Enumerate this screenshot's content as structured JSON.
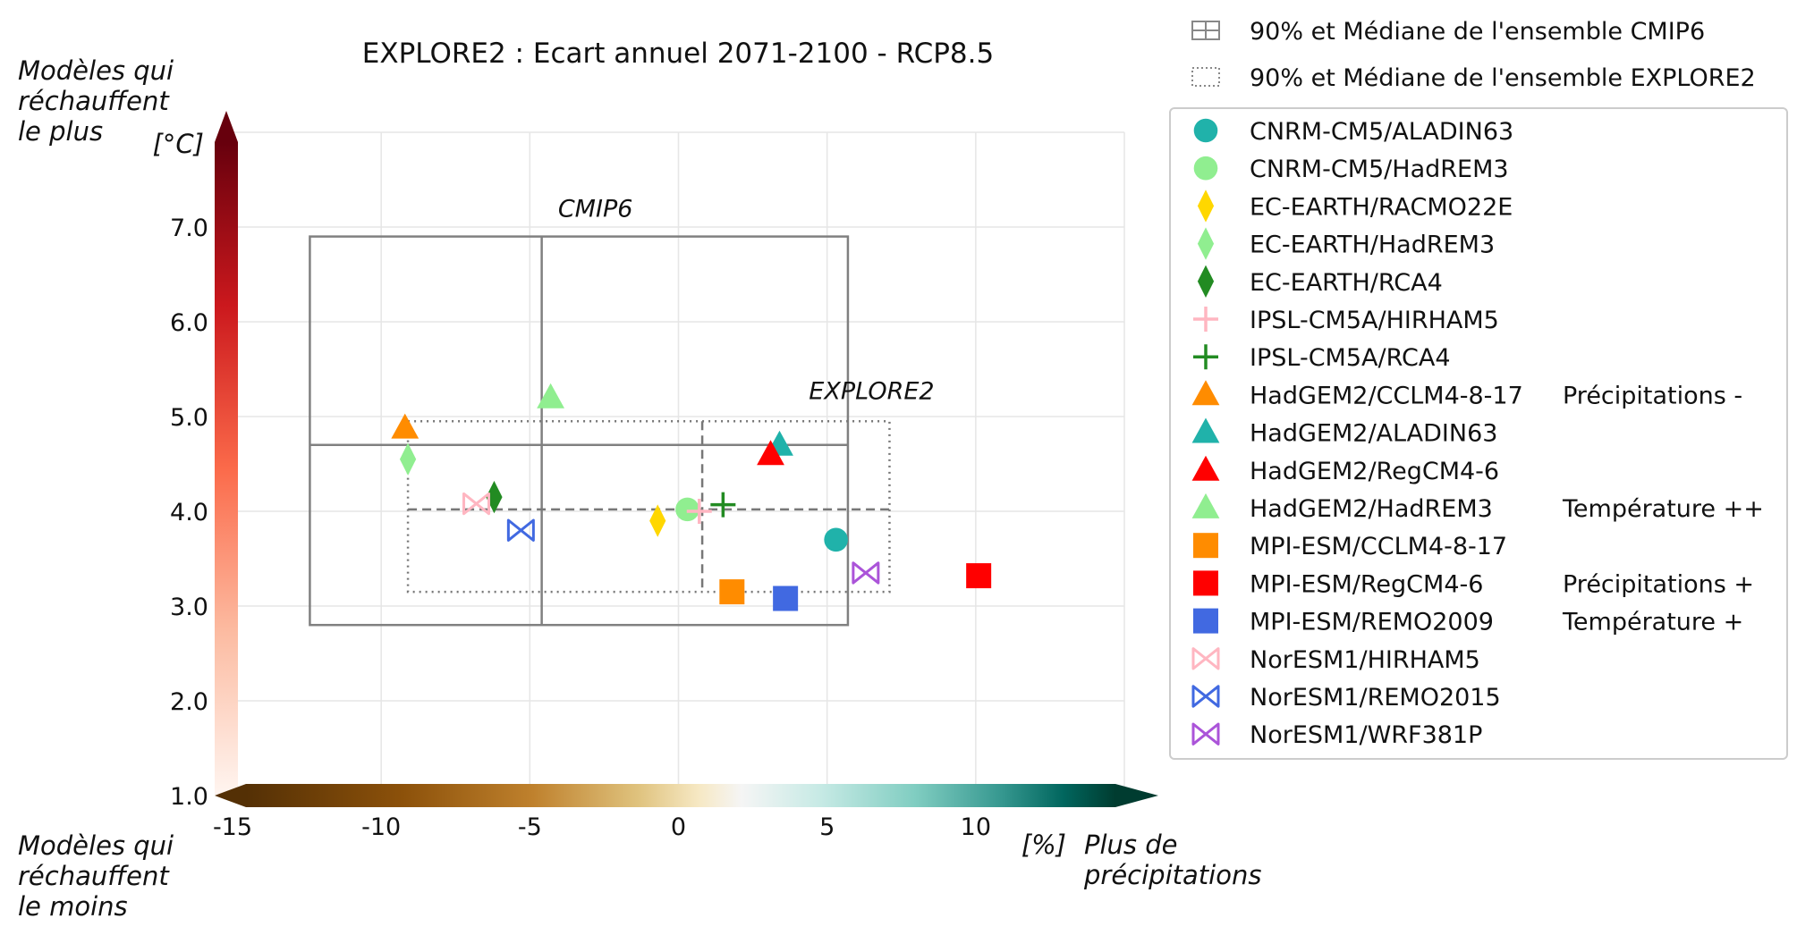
{
  "chart_data": {
    "type": "scatter",
    "title": "EXPLORE2 : Ecart annuel 2071-2100 - RCP8.5",
    "xlabel": "[%]",
    "ylabel": "[°C]",
    "xlim": [
      -15,
      15
    ],
    "ylim": [
      1.0,
      8.0
    ],
    "xticks": [
      -15,
      -10,
      -5,
      0,
      5,
      10
    ],
    "yticks": [
      1.0,
      2.0,
      3.0,
      4.0,
      5.0,
      6.0,
      7.0
    ],
    "xtick_labels": [
      "-15",
      "-10",
      "-5",
      "0",
      "5",
      "10"
    ],
    "ytick_labels": [
      "1.0",
      "2.0",
      "3.0",
      "4.0",
      "5.0",
      "6.0",
      "7.0"
    ],
    "grid": true,
    "corner_labels": {
      "top_left": "Modèles qui\nréchauffent\nle plus",
      "bottom_left": "Modèles qui\nréchauffent\nle moins",
      "bottom_right": "Plus de\nprécipitations"
    },
    "boxes": [
      {
        "name": "CMIP6",
        "label": "CMIP6",
        "style": "solid",
        "x": [
          -12.4,
          5.7
        ],
        "y": [
          2.8,
          6.9
        ],
        "median": [
          -4.6,
          4.7
        ]
      },
      {
        "name": "EXPLORE2",
        "label": "EXPLORE2",
        "style": "dotted",
        "x": [
          -9.1,
          7.1
        ],
        "y": [
          3.15,
          4.95
        ],
        "median": [
          0.8,
          4.02
        ]
      }
    ],
    "box_legend": [
      "90% et Médiane de l'ensemble CMIP6",
      "90% et Médiane de l'ensemble EXPLORE2"
    ],
    "side_labels": [
      {
        "text": "Précipitations -",
        "row": 7
      },
      {
        "text": "Température ++",
        "row": 10
      },
      {
        "text": "Précipitations +",
        "row": 12
      },
      {
        "text": "Température +",
        "row": 13
      }
    ],
    "legend_position": "right",
    "series": [
      {
        "name": "CNRM-CM5/ALADIN63",
        "marker": "circle",
        "color": "#20b2aa",
        "x": 5.3,
        "y": 3.7
      },
      {
        "name": "CNRM-CM5/HadREM3",
        "marker": "circle",
        "color": "#90ee90",
        "x": 0.3,
        "y": 4.02
      },
      {
        "name": "EC-EARTH/RACMO22E",
        "marker": "diamond",
        "color": "#ffd700",
        "x": -0.7,
        "y": 3.9
      },
      {
        "name": "EC-EARTH/HadREM3",
        "marker": "diamond",
        "color": "#90ee90",
        "x": -9.1,
        "y": 4.55
      },
      {
        "name": "EC-EARTH/RCA4",
        "marker": "diamond",
        "color": "#228b22",
        "x": -6.2,
        "y": 4.15
      },
      {
        "name": "IPSL-CM5A/HIRHAM5",
        "marker": "plus",
        "color": "#ffb6c1",
        "x": 0.7,
        "y": 4.0
      },
      {
        "name": "IPSL-CM5A/RCA4",
        "marker": "plus",
        "color": "#228b22",
        "x": 1.5,
        "y": 4.07
      },
      {
        "name": "HadGEM2/CCLM4-8-17",
        "marker": "triangle",
        "color": "#ff8c00",
        "x": -9.2,
        "y": 4.88
      },
      {
        "name": "HadGEM2/ALADIN63",
        "marker": "triangle",
        "color": "#20b2aa",
        "x": 3.4,
        "y": 4.7
      },
      {
        "name": "HadGEM2/RegCM4-6",
        "marker": "triangle",
        "color": "#ff0000",
        "x": 3.1,
        "y": 4.6
      },
      {
        "name": "HadGEM2/HadREM3",
        "marker": "triangle",
        "color": "#90ee90",
        "x": -4.3,
        "y": 5.2
      },
      {
        "name": "MPI-ESM/CCLM4-8-17",
        "marker": "square",
        "color": "#ff8c00",
        "x": 1.8,
        "y": 3.15
      },
      {
        "name": "MPI-ESM/RegCM4-6",
        "marker": "square",
        "color": "#ff0000",
        "x": 10.1,
        "y": 3.32
      },
      {
        "name": "MPI-ESM/REMO2009",
        "marker": "square",
        "color": "#4169e1",
        "x": 3.6,
        "y": 3.08
      },
      {
        "name": "NorESM1/HIRHAM5",
        "marker": "bowtie",
        "color": "#ffb6c1",
        "x": -6.8,
        "y": 4.08
      },
      {
        "name": "NorESM1/REMO2015",
        "marker": "bowtie",
        "color": "#4169e1",
        "x": -5.3,
        "y": 3.8
      },
      {
        "name": "NorESM1/WRF381P",
        "marker": "bowtie",
        "color": "#ab54d9",
        "x": 6.3,
        "y": 3.35
      }
    ]
  }
}
